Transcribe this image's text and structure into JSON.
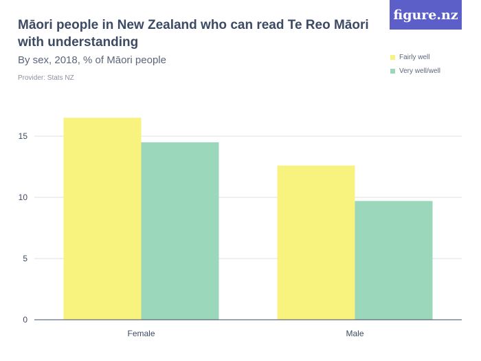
{
  "header": {
    "title": "Māori people in New Zealand who can read Te Reo Māori with understanding",
    "subtitle": "By sex, 2018, % of Māori people",
    "provider": "Provider: Stats NZ",
    "logo_text": "figure.nz"
  },
  "colors": {
    "fairly_well": "#f8f27f",
    "very_well": "#9ad7bb",
    "brand": "#5b5fc7"
  },
  "chart_data": {
    "type": "bar",
    "categories": [
      "Female",
      "Male"
    ],
    "series": [
      {
        "name": "Fairly well",
        "values": [
          16.5,
          12.6
        ]
      },
      {
        "name": "Very well/well",
        "values": [
          14.5,
          9.7
        ]
      }
    ],
    "title": "Māori people in New Zealand who can read Te Reo Māori with understanding",
    "subtitle": "By sex, 2018, % of Māori people",
    "xlabel": "",
    "ylabel": "",
    "ylim": [
      0,
      18
    ],
    "yticks": [
      0,
      5,
      10,
      15
    ],
    "grid": true,
    "legend_position": "top-right"
  }
}
